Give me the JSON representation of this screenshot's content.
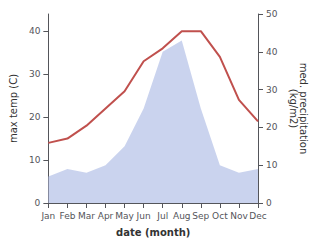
{
  "chart_data": {
    "type": "line",
    "categories": [
      "Jan",
      "Feb",
      "Mar",
      "Apr",
      "May",
      "Jun",
      "Jul",
      "Aug",
      "Sep",
      "Oct",
      "Nov",
      "Dec"
    ],
    "series": [
      {
        "type": "area",
        "color": "#b8c4e8",
        "axis": "y2",
        "values": [
          7,
          9,
          8,
          10,
          15,
          25,
          40,
          43,
          25,
          10,
          8,
          9
        ]
      },
      {
        "type": "line",
        "color": "#c0504d",
        "values": [
          14,
          15,
          18,
          22,
          26,
          33,
          36,
          40,
          40,
          34,
          24,
          19
        ]
      }
    ],
    "xlabel": "date (month)",
    "ylabel": "max temp (C)",
    "y2label": "med. precipitation\n(kg/m2)",
    "ylim": [
      0,
      44
    ],
    "yticks": [
      0,
      10,
      20,
      30,
      40
    ],
    "y2lim": [
      0,
      50
    ],
    "y2ticks": [
      0,
      10,
      20,
      30,
      40,
      50
    ],
    "grid": false
  }
}
